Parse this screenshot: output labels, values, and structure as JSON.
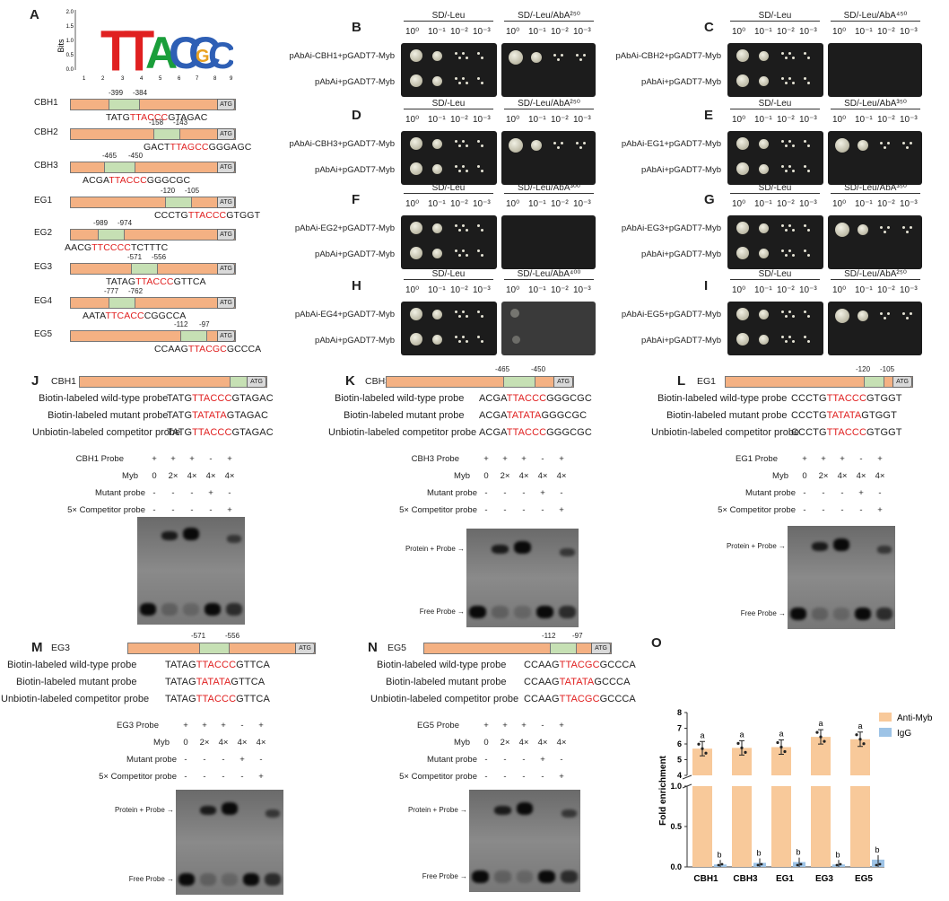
{
  "panels": [
    "A",
    "B",
    "C",
    "D",
    "E",
    "F",
    "G",
    "H",
    "I",
    "J",
    "K",
    "L",
    "M",
    "N",
    "O"
  ],
  "logo": {
    "ylabel": "Bits",
    "yticks": [
      "2.0",
      "1.5",
      "1.0",
      "0.5",
      "0.0"
    ],
    "xticks": [
      "1",
      "2",
      "3",
      "4",
      "5",
      "6",
      "7",
      "8",
      "9"
    ],
    "letters": [
      "T",
      "T",
      "A",
      "C",
      "C",
      "C",
      "G"
    ]
  },
  "promoters": [
    {
      "gene": "CBH1",
      "p1": "-399",
      "p2": "-384",
      "pre": "TATG",
      "core": "TTACCC",
      "post": "GTAGAC"
    },
    {
      "gene": "CBH2",
      "p1": "-158",
      "p2": "-143",
      "pre": "GACT",
      "core": "TTAGCC",
      "post": "GGGAGC"
    },
    {
      "gene": "CBH3",
      "p1": "-465",
      "p2": "-450",
      "pre": "ACGA",
      "core": "TTACCC",
      "post": "GGGCGC"
    },
    {
      "gene": "EG1",
      "p1": "-120",
      "p2": "-105",
      "pre": "CCCTG",
      "core": "TTACCC",
      "post": "GTGGT"
    },
    {
      "gene": "EG2",
      "p1": "-989",
      "p2": "-974",
      "pre": "AACG",
      "core": "TTCCCC",
      "post": "TCTTTC"
    },
    {
      "gene": "EG3",
      "p1": "-571",
      "p2": "-556",
      "pre": "TATAG",
      "core": "TTACCC",
      "post": "GTTCA"
    },
    {
      "gene": "EG4",
      "p1": "-777",
      "p2": "-762",
      "pre": "AATA",
      "core": "TTCACC",
      "post": "CGGCCA"
    },
    {
      "gene": "EG5",
      "p1": "-112",
      "p2": "-97",
      "pre": "CCAAG",
      "core": "TTACGC",
      "post": "GCCCA"
    }
  ],
  "atg": "ATG",
  "y1h": {
    "dilutions": [
      "10⁰",
      "10⁻¹",
      "10⁻²",
      "10⁻³"
    ],
    "sd": "SD/-Leu",
    "control": "pAbAi+pGADT7-Myb",
    "panels": [
      {
        "label": "B",
        "test": "pAbAi-CBH1+pGADT7-Myb",
        "aba": "SD/-Leu/AbA²⁵⁰"
      },
      {
        "label": "C",
        "test": "pAbAi-CBH2+pGADT7-Myb",
        "aba": "SD/-Leu/AbA⁴⁵⁰"
      },
      {
        "label": "D",
        "test": "pAbAi-CBH3+pGADT7-Myb",
        "aba": "SD/-Leu/AbA²⁵⁰"
      },
      {
        "label": "E",
        "test": "pAbAi-EG1+pGADT7-Myb",
        "aba": "SD/-Leu/AbA³⁵⁰"
      },
      {
        "label": "F",
        "test": "pAbAi-EG2+pGADT7-Myb",
        "aba": "SD/-Leu/AbA³⁰⁰"
      },
      {
        "label": "G",
        "test": "pAbAi-EG3+pGADT7-Myb",
        "aba": "SD/-Leu/AbA³⁵⁰"
      },
      {
        "label": "H",
        "test": "pAbAi-EG4+pGADT7-Myb",
        "aba": "SD/-Leu/AbA⁴⁰⁰"
      },
      {
        "label": "I",
        "test": "pAbAi-EG5+pGADT7-Myb",
        "aba": "SD/-Leu/AbA²⁵⁰"
      }
    ]
  },
  "emsa": {
    "wt": "Biotin-labeled wild-type probe",
    "mut": "Biotin-labeled mutant probe",
    "comp": "Unbiotin-labeled competitor probe",
    "probe_suffix": "Probe",
    "myb": "Myb",
    "mutant_probe": "Mutant probe",
    "competitor_probe": "5× Competitor probe",
    "protein_probe": "Protein + Probe",
    "free_probe": "Free Probe",
    "lanes": {
      "probe": [
        "+",
        "+",
        "+",
        "-",
        "+"
      ],
      "myb": [
        "0",
        "2×",
        "4×",
        "4×",
        "4×"
      ],
      "mutant": [
        "-",
        "-",
        "-",
        "+",
        "-"
      ],
      "competitor": [
        "-",
        "-",
        "-",
        "-",
        "+"
      ]
    },
    "panels": [
      {
        "label": "J",
        "gene": "CBH1",
        "pre": "TATG",
        "core": "TTACCC",
        "mut": "TATATA",
        "post": "GTAGAC",
        "p1": "",
        "p2": ""
      },
      {
        "label": "K",
        "gene": "CBH3",
        "pre": "ACGA",
        "core": "TTACCC",
        "mut": "TATATA",
        "post": "GGGCGC",
        "p1": "-465",
        "p2": "-450"
      },
      {
        "label": "L",
        "gene": "EG1",
        "pre": "CCCTG",
        "core": "TTACCC",
        "mut": "TATATA",
        "post": "GTGGT",
        "p1": "-120",
        "p2": "-105"
      },
      {
        "label": "M",
        "gene": "EG3",
        "pre": "TATAG",
        "core": "TTACCC",
        "mut": "TATATA",
        "post": "GTTCA",
        "p1": "-571",
        "p2": "-556"
      },
      {
        "label": "N",
        "gene": "EG5",
        "pre": "CCAAG",
        "core": "TTACGC",
        "mut": "TATATA",
        "post": "GCCCA",
        "p1": "-112",
        "p2": "-97"
      }
    ]
  },
  "chart_data": {
    "type": "bar",
    "ylabel": "Fold enrichment",
    "categories": [
      "CBH1",
      "CBH3",
      "EG1",
      "EG3",
      "EG5"
    ],
    "series": [
      {
        "name": "Anti-Myb",
        "color": "#f8c99a",
        "values": [
          5.7,
          5.75,
          5.8,
          6.45,
          6.3
        ],
        "sig": [
          "a",
          "a",
          "a",
          "a",
          "a"
        ]
      },
      {
        "name": "IgG",
        "color": "#9dc3e6",
        "values": [
          0.03,
          0.05,
          0.06,
          0.03,
          0.09
        ],
        "sig": [
          "b",
          "b",
          "b",
          "b",
          "b"
        ]
      }
    ],
    "yticks_upper": [
      "4",
      "5",
      "6",
      "7",
      "8"
    ],
    "yticks_lower": [
      "0.0",
      "0.5",
      "1.0"
    ]
  }
}
